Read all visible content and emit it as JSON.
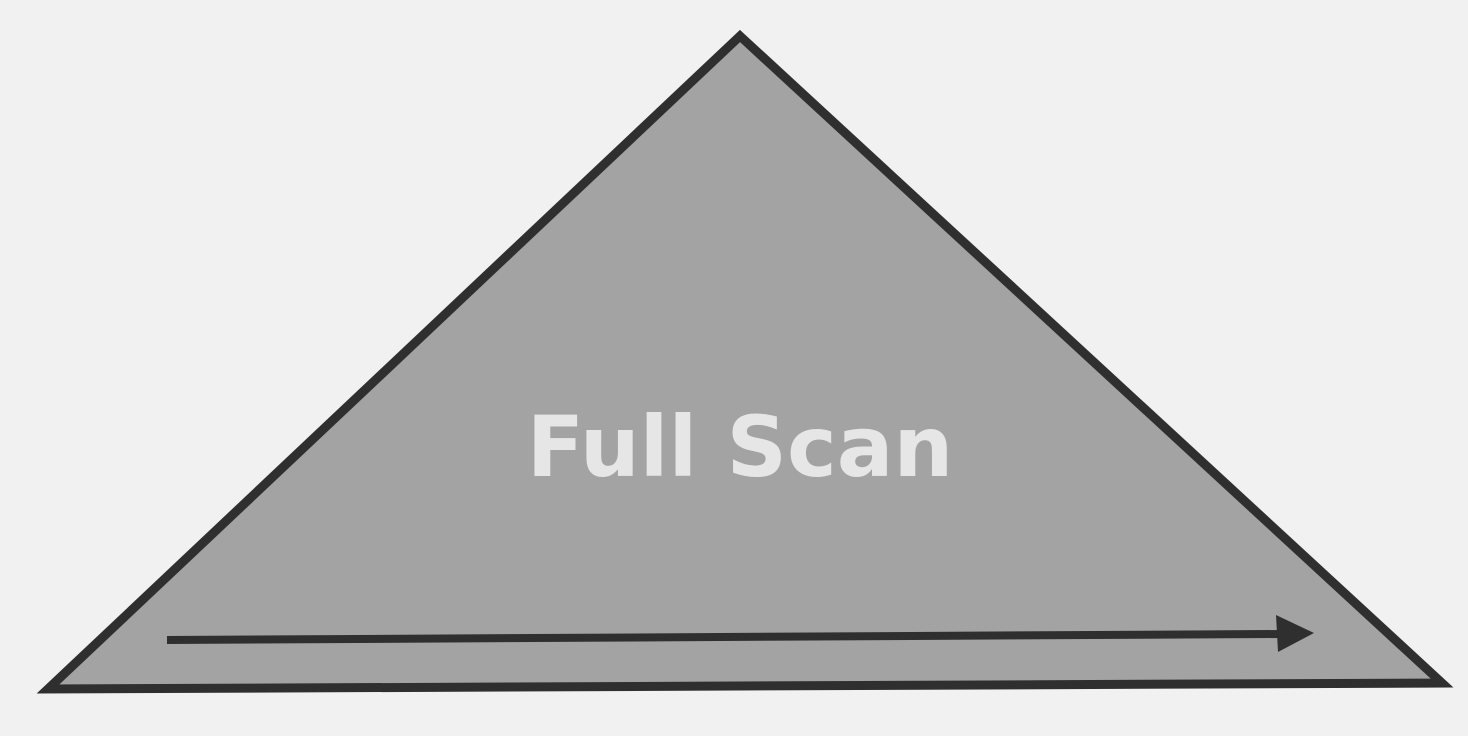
{
  "diagram": {
    "label": "Full Scan",
    "colors": {
      "background": "#f1f1f1",
      "triangle_fill": "#a3a3a3",
      "outline": "#2f2f2f",
      "arrow": "#2f2f2f",
      "label": "#e6e6e6"
    }
  }
}
